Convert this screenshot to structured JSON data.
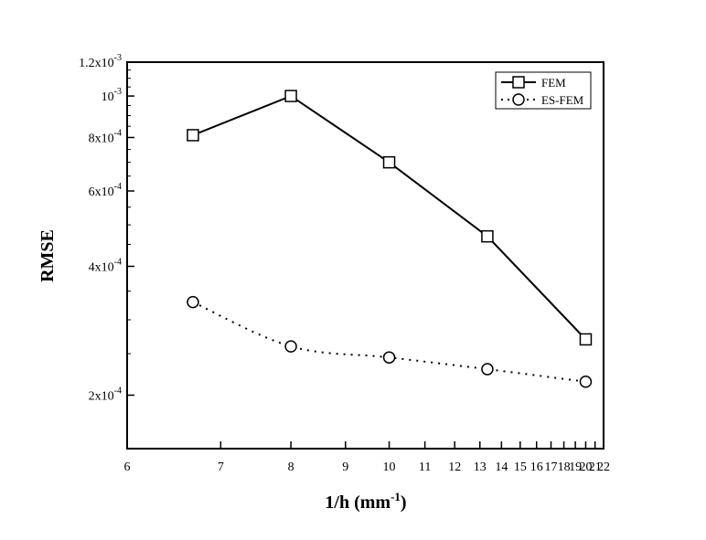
{
  "chart_data": {
    "type": "line",
    "title": "",
    "xlabel": "1/h (mm",
    "xlabel_sup": "-1",
    "xlabel_close": ")",
    "ylabel": "RMSE",
    "xscale": "reciprocal",
    "yscale": "log",
    "xlim": [
      6,
      22
    ],
    "ylim": [
      0.00015,
      0.0012
    ],
    "x_ticks": [
      {
        "value": 6,
        "label": "6"
      },
      {
        "value": 7,
        "label": "7"
      },
      {
        "value": 8,
        "label": "8"
      },
      {
        "value": 9,
        "label": "9"
      },
      {
        "value": 10,
        "label": "10"
      },
      {
        "value": 11,
        "label": "11"
      },
      {
        "value": 12,
        "label": "12"
      },
      {
        "value": 13,
        "label": "13"
      },
      {
        "value": 14,
        "label": "14"
      },
      {
        "value": 15,
        "label": "15"
      },
      {
        "value": 16,
        "label": "16"
      },
      {
        "value": 17,
        "label": "17"
      },
      {
        "value": 18,
        "label": "18"
      },
      {
        "value": 19,
        "label": "19"
      },
      {
        "value": 20,
        "label": "20"
      },
      {
        "value": 21,
        "label": "21"
      },
      {
        "value": 22,
        "label": "22"
      }
    ],
    "y_ticks": [
      {
        "value": 0.0002,
        "base": "2x10",
        "exp": "-4"
      },
      {
        "value": 0.0004,
        "base": "4x10",
        "exp": "-4"
      },
      {
        "value": 0.0006,
        "base": "6x10",
        "exp": "-4"
      },
      {
        "value": 0.0008,
        "base": "8x10",
        "exp": "-4"
      },
      {
        "value": 0.001,
        "base": "10",
        "exp": "-3"
      },
      {
        "value": 0.0012,
        "base": "1.2x10",
        "exp": "-3"
      }
    ],
    "x": [
      6.67,
      8,
      10,
      13.33,
      20
    ],
    "series": [
      {
        "name": "FEM",
        "values": [
          0.00081,
          0.001,
          0.0007,
          0.00047,
          0.00027
        ],
        "color": "#000000",
        "line": "solid",
        "marker": "square"
      },
      {
        "name": "ES-FEM",
        "values": [
          0.00033,
          0.00026,
          0.000245,
          0.00023,
          0.000215
        ],
        "color": "#000000",
        "line": "dotted",
        "marker": "circle"
      }
    ],
    "grid": false,
    "legend": "top-right"
  }
}
